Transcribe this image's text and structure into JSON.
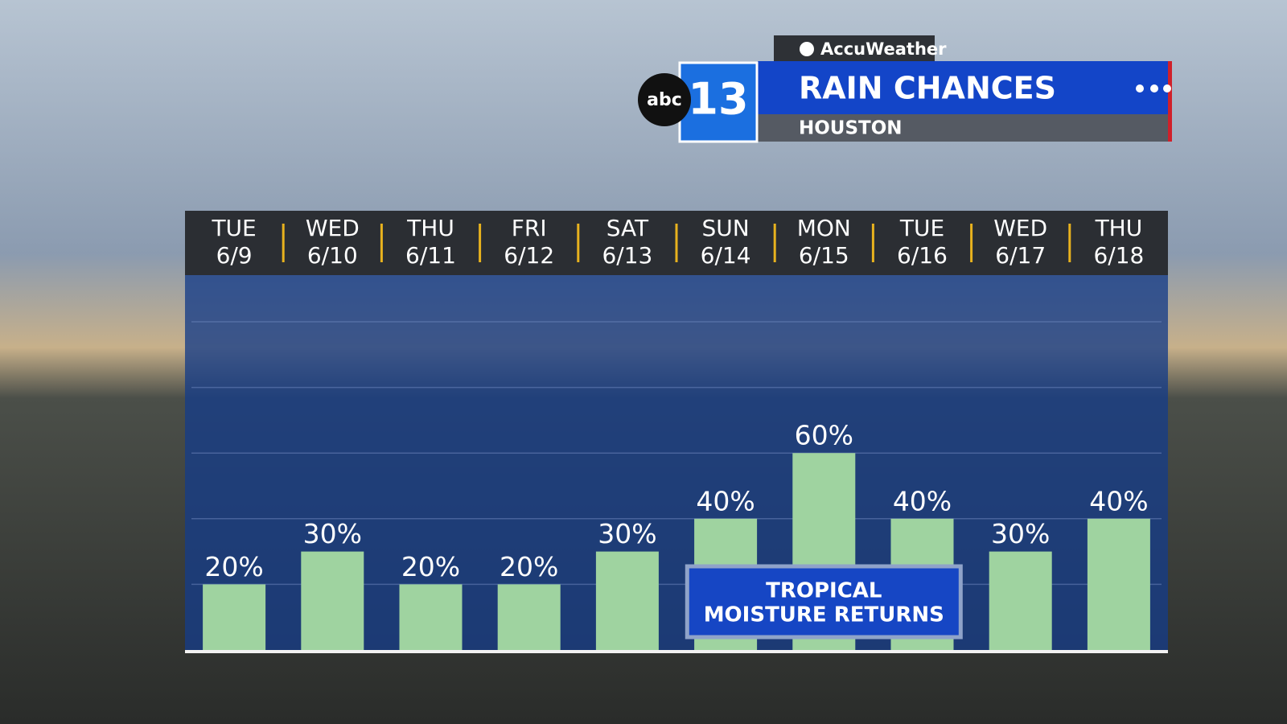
{
  "header": {
    "brand": "AccuWeather",
    "network": "abc",
    "channel": "13",
    "title": "RAIN CHANCES",
    "location": "HOUSTON"
  },
  "chart_data": {
    "type": "bar",
    "weekdays": [
      "TUE",
      "WED",
      "THU",
      "FRI",
      "SAT",
      "SUN",
      "MON",
      "TUE",
      "WED",
      "THU"
    ],
    "categories": [
      "6/9",
      "6/10",
      "6/11",
      "6/12",
      "6/13",
      "6/14",
      "6/15",
      "6/16",
      "6/17",
      "6/18"
    ],
    "values": [
      20,
      30,
      20,
      20,
      30,
      40,
      60,
      40,
      30,
      40
    ],
    "value_labels": [
      "20%",
      "30%",
      "20%",
      "20%",
      "30%",
      "40%",
      "60%",
      "40%",
      "30%",
      "40%"
    ],
    "color": "#9fd3a0",
    "ylim": [
      0,
      100
    ],
    "yticks": [
      20,
      40,
      60,
      80,
      100
    ],
    "grid": true,
    "annotation": [
      "TROPICAL",
      "MOISTURE RETURNS"
    ]
  }
}
